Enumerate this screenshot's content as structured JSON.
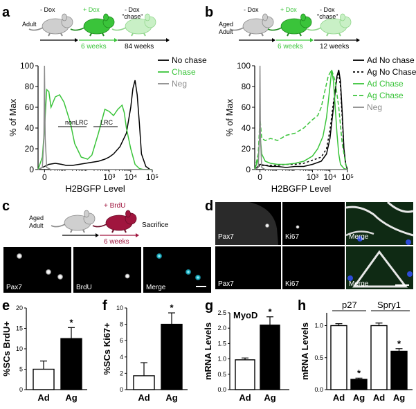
{
  "panels": {
    "a": {
      "letter": "a",
      "timeline": {
        "group": "Adult",
        "stage1": "- Dox",
        "stage2": "+ Dox",
        "stage3": "- Dox",
        "stage3b": "\"chase\"",
        "dur1": "6 weeks",
        "dur2": "84 weeks"
      },
      "gates": {
        "g1": "nonLRC",
        "g2": "LRC"
      }
    },
    "b": {
      "letter": "b",
      "timeline": {
        "group1": "Aged",
        "group2": "Adult",
        "stage1": "- Dox",
        "stage2": "+ Dox",
        "stage3": "- Dox",
        "stage3b": "\"chase\"",
        "dur1": "6 weeks",
        "dur2": "12 weeks"
      }
    },
    "c": {
      "letter": "c",
      "timeline": {
        "group1": "Aged",
        "group2": "Adult",
        "treatment": "+ BrdU",
        "end": "Sacrifice",
        "dur": "6 weeks"
      },
      "images": [
        "Pax7",
        "BrdU",
        "Merge"
      ]
    },
    "d": {
      "letter": "d",
      "images_row1": [
        "Pax7",
        "Ki67",
        "Merge"
      ],
      "images_row2": [
        "Pax7",
        "Ki67",
        "Merge"
      ]
    },
    "e": {
      "letter": "e"
    },
    "f": {
      "letter": "f"
    },
    "g": {
      "letter": "g",
      "inner_label": "MyoD"
    },
    "h": {
      "letter": "h",
      "group1": "p27",
      "group2": "Spry1"
    }
  },
  "colors": {
    "green": "#3ac43a",
    "light_green": "#c9f0c6",
    "gray": "#8a8a8a",
    "light_gray": "#cfcfcf",
    "brdu_red": "#a0153e",
    "cyan": "#29c7d9"
  },
  "chart_data": [
    {
      "panel": "a",
      "type": "line",
      "xlabel": "H2BGFP Level",
      "ylabel": "% of Max",
      "x_ticks": [
        "0",
        "10³",
        "10⁴",
        "10⁵"
      ],
      "y_ticks": [
        "0",
        "20",
        "40",
        "60",
        "80",
        "100"
      ],
      "ylim": [
        0,
        100
      ],
      "legend": [
        "No chase",
        "Chase",
        "Neg"
      ],
      "legend_placement": "right",
      "series": [
        {
          "name": "No chase",
          "color": "#000000",
          "dash": "",
          "x": [
            -0.3,
            0,
            0.2,
            0.5,
            0.8,
            1.0,
            1.3,
            1.6,
            1.9,
            2.2,
            2.5,
            2.8,
            3.0,
            3.2,
            3.5,
            3.8,
            4.0,
            4.1,
            4.2,
            4.3,
            4.4,
            4.5,
            4.7,
            4.9,
            5.0
          ],
          "y": [
            0,
            3,
            5,
            6,
            5,
            4,
            4,
            5,
            6,
            7,
            8,
            10,
            12,
            15,
            22,
            35,
            60,
            78,
            86,
            72,
            45,
            15,
            3,
            0,
            0
          ]
        },
        {
          "name": "Chase",
          "color": "#3ac43a",
          "dash": "",
          "x": [
            -0.3,
            -0.1,
            0,
            0.1,
            0.2,
            0.3,
            0.5,
            0.7,
            0.9,
            1.2,
            1.4,
            1.7,
            2.0,
            2.2,
            2.5,
            2.8,
            3.0,
            3.2,
            3.4,
            3.6,
            3.7,
            3.8,
            4.0,
            4.2,
            4.4,
            4.6,
            5.0
          ],
          "y": [
            0,
            12,
            40,
            77,
            75,
            60,
            70,
            72,
            65,
            45,
            25,
            12,
            10,
            14,
            35,
            58,
            56,
            52,
            58,
            62,
            55,
            40,
            20,
            5,
            1,
            0,
            0
          ]
        },
        {
          "name": "Neg",
          "color": "#8a8a8a",
          "dash": "",
          "x": [
            -0.3,
            -0.1,
            -0.03,
            0,
            0.03,
            0.1,
            0.3,
            5.0
          ],
          "y": [
            0,
            2,
            30,
            100,
            30,
            2,
            0,
            0
          ]
        }
      ]
    },
    {
      "panel": "b",
      "type": "line",
      "xlabel": "H2BGFP Level",
      "ylabel": "% of Max",
      "x_ticks": [
        "0",
        "10³",
        "10⁴",
        "10⁵"
      ],
      "y_ticks": [
        "0",
        "20",
        "40",
        "60",
        "80",
        "100"
      ],
      "ylim": [
        0,
        100
      ],
      "legend": [
        "Ad No chase",
        "Ag No Chase",
        "Ad Chase",
        "Ag Chase",
        "Neg"
      ],
      "legend_placement": "right",
      "series": [
        {
          "name": "Ad No chase",
          "color": "#000000",
          "dash": "",
          "x": [
            -0.3,
            0,
            0.3,
            0.6,
            1.0,
            1.5,
            2.0,
            2.5,
            3.0,
            3.5,
            3.8,
            4.0,
            4.2,
            4.4,
            4.5,
            4.6,
            4.7,
            4.8,
            4.9,
            5.0
          ],
          "y": [
            0,
            5,
            4,
            3,
            3,
            2,
            3,
            3,
            5,
            8,
            15,
            30,
            60,
            90,
            96,
            85,
            55,
            20,
            5,
            0
          ]
        },
        {
          "name": "Ag No Chase",
          "color": "#000000",
          "dash": "3,3",
          "x": [
            -0.3,
            0,
            0.3,
            0.6,
            1.0,
            1.5,
            2.0,
            2.5,
            3.0,
            3.5,
            3.8,
            4.0,
            4.2,
            4.4,
            4.5,
            4.6,
            4.7,
            4.8,
            4.9,
            5.0
          ],
          "y": [
            0,
            4,
            4,
            4,
            4,
            5,
            5,
            6,
            9,
            12,
            20,
            38,
            65,
            88,
            92,
            80,
            50,
            18,
            5,
            0
          ]
        },
        {
          "name": "Ad Chase",
          "color": "#3ac43a",
          "dash": "",
          "x": [
            -0.3,
            -0.1,
            0,
            0.1,
            0.3,
            0.6,
            1.0,
            1.5,
            2.0,
            2.5,
            3.0,
            3.3,
            3.6,
            3.8,
            4.0,
            4.1,
            4.2,
            4.3,
            4.4,
            4.5,
            4.6,
            4.8,
            5.0
          ],
          "y": [
            0,
            10,
            35,
            15,
            8,
            6,
            5,
            5,
            6,
            8,
            13,
            20,
            32,
            50,
            80,
            96,
            85,
            60,
            35,
            15,
            5,
            1,
            0
          ]
        },
        {
          "name": "Ag Chase",
          "color": "#3ac43a",
          "dash": "6,3",
          "x": [
            -0.3,
            -0.1,
            0,
            0.1,
            0.3,
            0.6,
            1.0,
            1.5,
            2.0,
            2.5,
            3.0,
            3.3,
            3.5,
            3.7,
            3.9,
            4.1,
            4.3,
            4.5,
            4.7,
            4.9,
            5.0
          ],
          "y": [
            0,
            15,
            50,
            30,
            28,
            30,
            28,
            33,
            35,
            40,
            48,
            52,
            60,
            75,
            90,
            96,
            85,
            60,
            25,
            5,
            0
          ]
        },
        {
          "name": "Neg",
          "color": "#8a8a8a",
          "dash": "",
          "x": [
            -0.3,
            -0.1,
            -0.03,
            0,
            0.03,
            0.1,
            0.3,
            5.0
          ],
          "y": [
            0,
            2,
            30,
            100,
            30,
            2,
            0,
            0
          ]
        }
      ]
    },
    {
      "panel": "e",
      "type": "bar",
      "ylabel": "%SCs BrdU+",
      "categories": [
        "Ad",
        "Ag"
      ],
      "values": [
        5,
        12.5
      ],
      "errors": [
        2,
        2.7
      ],
      "fills": [
        "#ffffff",
        "#000000"
      ],
      "significance": [
        "",
        "*"
      ],
      "ylim": [
        0,
        20
      ],
      "y_ticks": [
        "0",
        "5",
        "10",
        "15",
        "20"
      ]
    },
    {
      "panel": "f",
      "type": "bar",
      "ylabel": "%SCs Ki67+",
      "categories": [
        "Ad",
        "Ag"
      ],
      "values": [
        1.7,
        8
      ],
      "errors": [
        1.6,
        1.4
      ],
      "fills": [
        "#ffffff",
        "#000000"
      ],
      "significance": [
        "",
        "*"
      ],
      "ylim": [
        0,
        10
      ],
      "y_ticks": [
        "0",
        "2",
        "4",
        "6",
        "8",
        "10"
      ]
    },
    {
      "panel": "g",
      "type": "bar",
      "ylabel": "mRNA Levels",
      "categories": [
        "Ad",
        "Ag"
      ],
      "values": [
        0.97,
        2.1
      ],
      "errors": [
        0.06,
        0.27
      ],
      "fills": [
        "#ffffff",
        "#000000"
      ],
      "significance": [
        "",
        "*"
      ],
      "ylim": [
        0,
        2.5
      ],
      "y_ticks": [
        "0.0",
        "0.5",
        "1.0",
        "1.5",
        "2.0",
        "2.5"
      ]
    },
    {
      "panel": "h",
      "type": "bar",
      "ylabel": "mRNA Levels",
      "categories": [
        "Ad",
        "Ag",
        "Ad",
        "Ag"
      ],
      "values": [
        1.0,
        0.16,
        1.0,
        0.6
      ],
      "errors": [
        0.03,
        0.02,
        0.04,
        0.04
      ],
      "fills": [
        "#ffffff",
        "#000000",
        "#ffffff",
        "#000000"
      ],
      "significance": [
        "",
        "*",
        "",
        "*"
      ],
      "ylim": [
        0,
        1.2
      ],
      "y_ticks": [
        "0.0",
        "0.5",
        "1.0"
      ]
    }
  ]
}
